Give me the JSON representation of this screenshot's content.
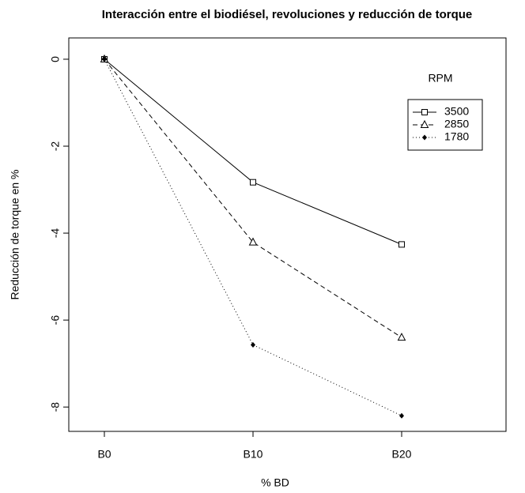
{
  "chart_data": {
    "type": "line",
    "title": "Interacción entre el biodiésel, revoluciones y reducción de torque",
    "x_label": "% BD",
    "y_label": "Reducción de torque en %",
    "categories": [
      "B0",
      "B10",
      "B20"
    ],
    "legend_title": "RPM",
    "legend": "top-right",
    "series": [
      {
        "name": "3500",
        "color": "#000000",
        "marker": "square",
        "dash": "solid",
        "values": [
          0,
          -2.83,
          -4.26
        ]
      },
      {
        "name": "2850",
        "color": "#000000",
        "marker": "triangle",
        "dash": "dashed",
        "values": [
          0,
          -4.21,
          -6.4
        ]
      },
      {
        "name": "1780",
        "color": "#000000",
        "marker": "diamond",
        "dash": "dotted",
        "values": [
          0,
          -6.57,
          -8.2
        ]
      }
    ],
    "ylim": [
      -8.56,
      0.49
    ],
    "yticks": [
      0,
      -2,
      -4,
      -6,
      -8
    ]
  }
}
